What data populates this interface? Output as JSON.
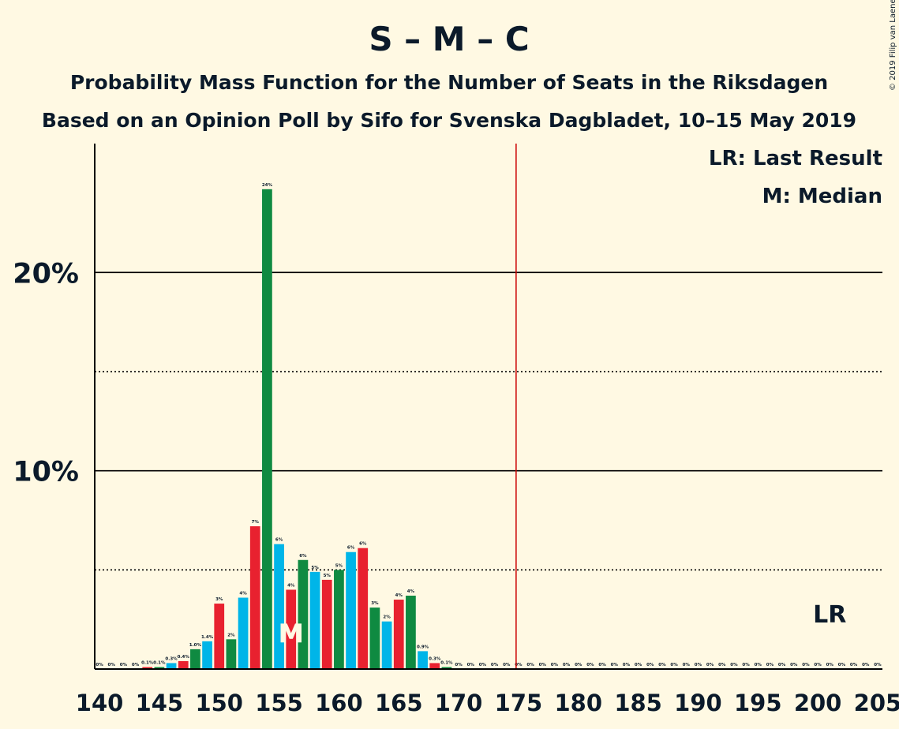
{
  "chart_data": {
    "type": "bar",
    "title": "S – M – C",
    "subtitle": "Probability Mass Function for the Number of Seats in the Riksdagen",
    "subtitle2": "Based on an Opinion Poll by Sifo for Svenska Dagbladet, 10–15 May 2019",
    "copyright": "© 2019 Filip van Laenen",
    "legend": {
      "lr": "LR: Last Result",
      "median": "M: Median",
      "placement": "top-right"
    },
    "xlim": [
      140,
      205
    ],
    "ylim": [
      0,
      26.5
    ],
    "x_ticks": [
      140,
      145,
      150,
      155,
      160,
      165,
      170,
      175,
      180,
      185,
      190,
      195,
      200,
      205
    ],
    "y_ticks_labeled": [
      {
        "value": 10,
        "label": "10%"
      },
      {
        "value": 20,
        "label": "20%"
      }
    ],
    "y_gridlines_solid": [
      10,
      20
    ],
    "y_gridlines_dotted": [
      5,
      15
    ],
    "majority_line": 175,
    "median": {
      "seat": 156,
      "label": "M"
    },
    "last_result": {
      "seat": 201,
      "label": "LR"
    },
    "bar_colors": [
      "#00B5E8",
      "#E8212F",
      "#0F8A41"
    ],
    "points": [
      {
        "seat": 140,
        "value": 0,
        "label": "0%"
      },
      {
        "seat": 141,
        "value": 0,
        "label": "0%"
      },
      {
        "seat": 142,
        "value": 0,
        "label": "0%"
      },
      {
        "seat": 143,
        "value": 0,
        "label": "0%"
      },
      {
        "seat": 144,
        "value": 0.1,
        "label": "0.1%"
      },
      {
        "seat": 145,
        "value": 0.1,
        "label": "0.1%"
      },
      {
        "seat": 146,
        "value": 0.3,
        "label": "0.3%"
      },
      {
        "seat": 147,
        "value": 0.4,
        "label": "0.4%"
      },
      {
        "seat": 148,
        "value": 1.0,
        "label": "1.0%"
      },
      {
        "seat": 149,
        "value": 1.4,
        "label": "1.4%"
      },
      {
        "seat": 150,
        "value": 3.3,
        "label": "3%"
      },
      {
        "seat": 151,
        "value": 1.5,
        "label": "2%"
      },
      {
        "seat": 152,
        "value": 3.6,
        "label": "4%"
      },
      {
        "seat": 153,
        "value": 7.2,
        "label": "7%"
      },
      {
        "seat": 154,
        "value": 24.2,
        "label": "24%"
      },
      {
        "seat": 155,
        "value": 6.3,
        "label": "6%"
      },
      {
        "seat": 156,
        "value": 4.0,
        "label": "4%"
      },
      {
        "seat": 157,
        "value": 5.5,
        "label": "6%"
      },
      {
        "seat": 158,
        "value": 4.9,
        "label": "5%"
      },
      {
        "seat": 159,
        "value": 4.5,
        "label": "5%"
      },
      {
        "seat": 160,
        "value": 5.0,
        "label": "5%"
      },
      {
        "seat": 161,
        "value": 5.9,
        "label": "6%"
      },
      {
        "seat": 162,
        "value": 6.1,
        "label": "6%"
      },
      {
        "seat": 163,
        "value": 3.1,
        "label": "3%"
      },
      {
        "seat": 164,
        "value": 2.4,
        "label": "2%"
      },
      {
        "seat": 165,
        "value": 3.5,
        "label": "4%"
      },
      {
        "seat": 166,
        "value": 3.7,
        "label": "4%"
      },
      {
        "seat": 167,
        "value": 0.9,
        "label": "0.9%"
      },
      {
        "seat": 168,
        "value": 0.3,
        "label": "0.3%"
      },
      {
        "seat": 169,
        "value": 0.1,
        "label": "0.1%"
      },
      {
        "seat": 170,
        "value": 0,
        "label": "0%"
      },
      {
        "seat": 171,
        "value": 0,
        "label": "0%"
      },
      {
        "seat": 172,
        "value": 0,
        "label": "0%"
      },
      {
        "seat": 173,
        "value": 0,
        "label": "0%"
      },
      {
        "seat": 174,
        "value": 0,
        "label": "0%"
      },
      {
        "seat": 175,
        "value": 0,
        "label": "0%"
      },
      {
        "seat": 176,
        "value": 0,
        "label": "0%"
      },
      {
        "seat": 177,
        "value": 0,
        "label": "0%"
      },
      {
        "seat": 178,
        "value": 0,
        "label": "0%"
      },
      {
        "seat": 179,
        "value": 0,
        "label": "0%"
      },
      {
        "seat": 180,
        "value": 0,
        "label": "0%"
      },
      {
        "seat": 181,
        "value": 0,
        "label": "0%"
      },
      {
        "seat": 182,
        "value": 0,
        "label": "0%"
      },
      {
        "seat": 183,
        "value": 0,
        "label": "0%"
      },
      {
        "seat": 184,
        "value": 0,
        "label": "0%"
      },
      {
        "seat": 185,
        "value": 0,
        "label": "0%"
      },
      {
        "seat": 186,
        "value": 0,
        "label": "0%"
      },
      {
        "seat": 187,
        "value": 0,
        "label": "0%"
      },
      {
        "seat": 188,
        "value": 0,
        "label": "0%"
      },
      {
        "seat": 189,
        "value": 0,
        "label": "0%"
      },
      {
        "seat": 190,
        "value": 0,
        "label": "0%"
      },
      {
        "seat": 191,
        "value": 0,
        "label": "0%"
      },
      {
        "seat": 192,
        "value": 0,
        "label": "0%"
      },
      {
        "seat": 193,
        "value": 0,
        "label": "0%"
      },
      {
        "seat": 194,
        "value": 0,
        "label": "0%"
      },
      {
        "seat": 195,
        "value": 0,
        "label": "0%"
      },
      {
        "seat": 196,
        "value": 0,
        "label": "0%"
      },
      {
        "seat": 197,
        "value": 0,
        "label": "0%"
      },
      {
        "seat": 198,
        "value": 0,
        "label": "0%"
      },
      {
        "seat": 199,
        "value": 0,
        "label": "0%"
      },
      {
        "seat": 200,
        "value": 0,
        "label": "0%"
      },
      {
        "seat": 201,
        "value": 0,
        "label": "0%"
      },
      {
        "seat": 202,
        "value": 0,
        "label": "0%"
      },
      {
        "seat": 203,
        "value": 0,
        "label": "0%"
      },
      {
        "seat": 204,
        "value": 0,
        "label": "0%"
      },
      {
        "seat": 205,
        "value": 0,
        "label": "0%"
      }
    ]
  }
}
